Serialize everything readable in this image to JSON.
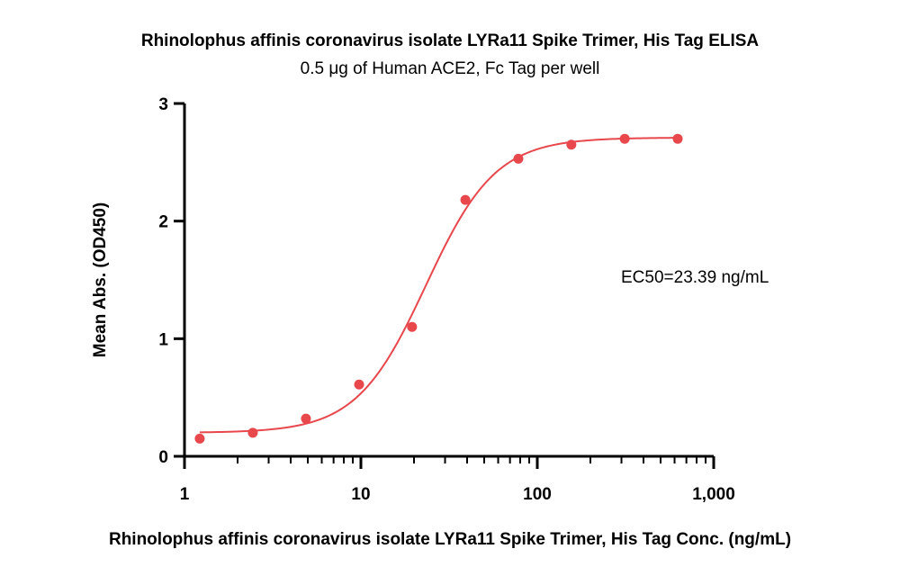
{
  "chart_data": {
    "type": "scatter",
    "title": "Rhinolophus affinis coronavirus isolate LYRa11 Spike Trimer, His Tag ELISA",
    "subtitle": "0.5 μg of Human ACE2, Fc Tag per well",
    "xlabel": "Rhinolophus affinis coronavirus isolate LYRa11 Spike Trimer, His Tag Conc. (ng/mL)",
    "ylabel": "Mean Abs. (OD450)",
    "x_scale": "log",
    "xlim": [
      1,
      1000
    ],
    "ylim": [
      0,
      3
    ],
    "x_ticks": [
      1,
      10,
      100,
      1000
    ],
    "x_tick_labels": [
      "1",
      "10",
      "100",
      "1,000"
    ],
    "y_ticks": [
      0,
      1,
      2,
      3
    ],
    "y_tick_labels": [
      "0",
      "1",
      "2",
      "3"
    ],
    "grid": false,
    "annotation": "EC50=23.39 ng/mL",
    "color": "#e8474c",
    "series": [
      {
        "x": [
          1.22,
          2.44,
          4.88,
          9.77,
          19.5,
          39.1,
          78.1,
          156,
          313,
          625
        ],
        "values": [
          0.15,
          0.2,
          0.32,
          0.61,
          1.1,
          2.18,
          2.53,
          2.65,
          2.7,
          2.7
        ]
      }
    ],
    "fit": {
      "model": "4PL",
      "bottom": 0.2,
      "top": 2.71,
      "ec50": 23.39,
      "hill": 2.2,
      "x_range": [
        1.22,
        625
      ]
    }
  }
}
